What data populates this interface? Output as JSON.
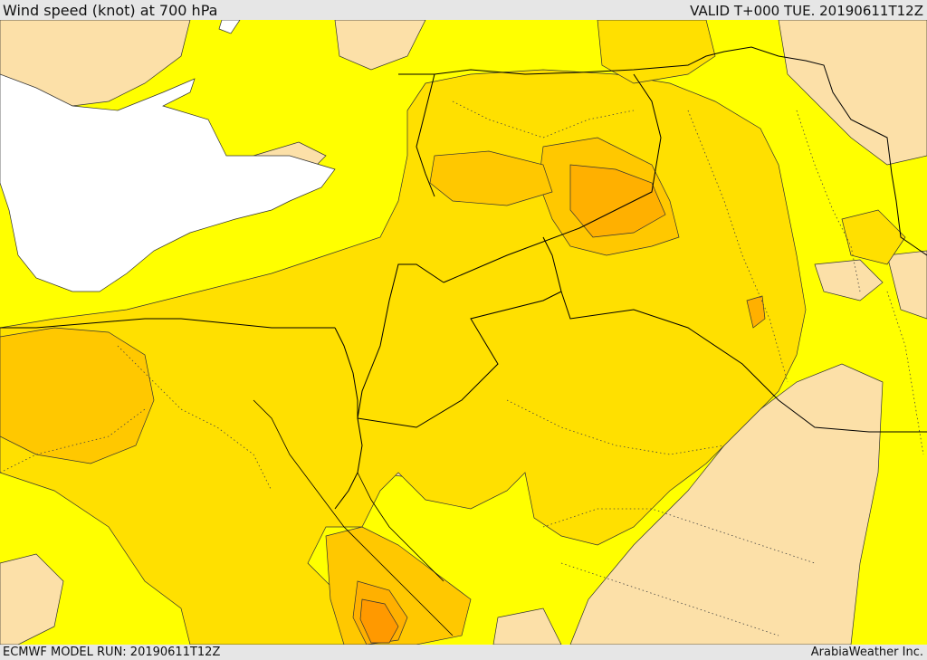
{
  "header": {
    "title": "Wind speed (knot) at 700 hPa",
    "valid": "VALID T+000 TUE. 20190611T12Z"
  },
  "footer": {
    "model_run": "ECMWF MODEL RUN: 20190611T12Z",
    "credit": "ArabiaWeather Inc."
  },
  "colors": {
    "sea": "#ffffff",
    "level_1": "#fce0a8",
    "level_2": "#ffff00",
    "level_3": "#ffe000",
    "level_4": "#ffc800",
    "level_5": "#ffb000",
    "level_6": "#ff9900"
  }
}
